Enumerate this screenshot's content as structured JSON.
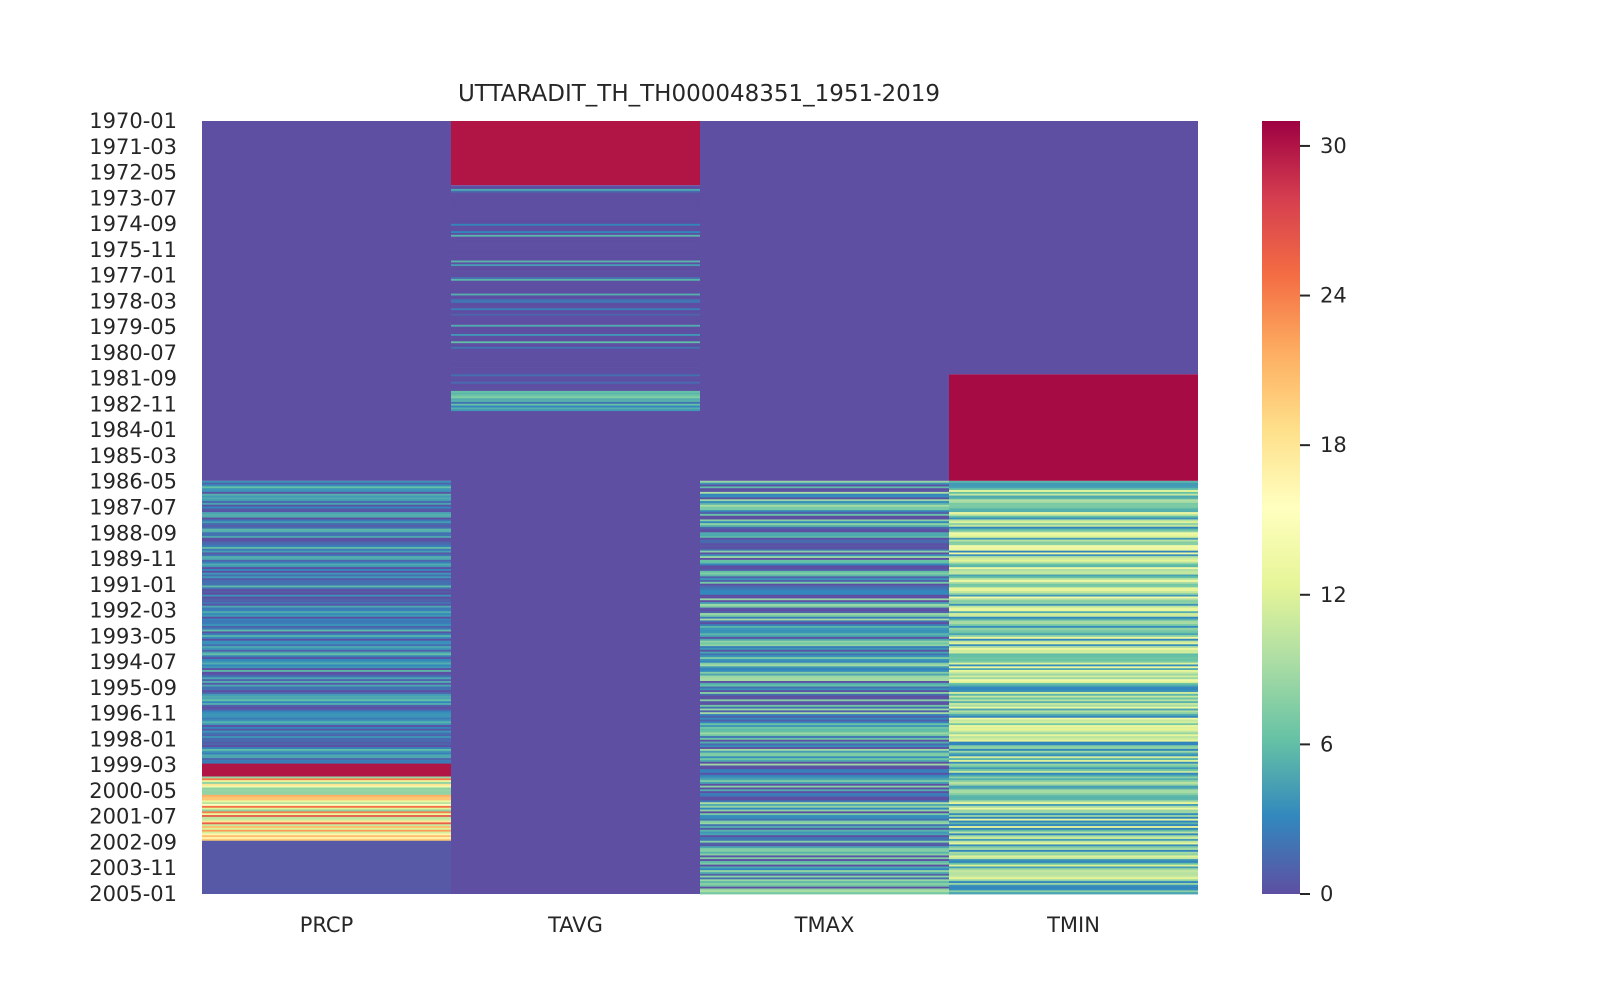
{
  "chart_data": {
    "type": "heatmap",
    "title": "UTTARADIT_TH_TH000048351_1951-2019",
    "columns": [
      "PRCP",
      "TAVG",
      "TMAX",
      "TMIN"
    ],
    "y_tick_labels": [
      "1970-01",
      "1971-03",
      "1972-05",
      "1973-07",
      "1974-09",
      "1975-11",
      "1977-01",
      "1978-03",
      "1979-05",
      "1980-07",
      "1981-09",
      "1982-11",
      "1984-01",
      "1985-03",
      "1986-05",
      "1987-07",
      "1988-09",
      "1989-11",
      "1991-01",
      "1992-03",
      "1993-05",
      "1994-07",
      "1995-09",
      "1996-11",
      "1998-01",
      "1999-03",
      "2000-05",
      "2001-07",
      "2002-09",
      "2003-11",
      "2005-01"
    ],
    "y_range": [
      "1970-01",
      "2005-01"
    ],
    "colorbar": {
      "range": [
        0,
        31
      ],
      "ticks": [
        0,
        6,
        12,
        18,
        24,
        30
      ],
      "colormap": "Spectral_r",
      "colors": [
        "#5e4fa2",
        "#3288bd",
        "#66c2a5",
        "#abdda4",
        "#e6f598",
        "#ffffbf",
        "#fee08b",
        "#fdae61",
        "#f46d43",
        "#d53e4f",
        "#9e0142"
      ]
    },
    "segments": {
      "PRCP": [
        {
          "from": "1970-01",
          "to": "1986-04",
          "value": 0
        },
        {
          "from": "1986-05",
          "to": "1999-02",
          "value": 2.5,
          "note": "varying 0-8"
        },
        {
          "from": "1999-03",
          "to": "1999-09",
          "value": 30
        },
        {
          "from": "1999-10",
          "to": "2002-08",
          "value": 16,
          "note": "varying 8-31"
        },
        {
          "from": "2002-09",
          "to": "2005-01",
          "value": 0.5
        }
      ],
      "TAVG": [
        {
          "from": "1970-01",
          "to": "1972-11",
          "value": 30
        },
        {
          "from": "1972-12",
          "to": "1982-03",
          "value": 0.5,
          "note": "sparse 1-6"
        },
        {
          "from": "1982-04",
          "to": "1983-02",
          "value": 4,
          "note": "varying 2-10"
        },
        {
          "from": "1983-03",
          "to": "2005-01",
          "value": 0
        }
      ],
      "TMAX": [
        {
          "from": "1970-01",
          "to": "1986-04",
          "value": 0
        },
        {
          "from": "1986-05",
          "to": "2005-01",
          "value": 4,
          "note": "varying 0-12"
        }
      ],
      "TMIN": [
        {
          "from": "1970-01",
          "to": "1981-06",
          "value": 0
        },
        {
          "from": "1981-07",
          "to": "1986-04",
          "value": 30.5
        },
        {
          "from": "1986-05",
          "to": "2005-01",
          "value": 8,
          "note": "varying 3-16"
        }
      ]
    },
    "grid": false,
    "legend": "colorbar-right"
  }
}
